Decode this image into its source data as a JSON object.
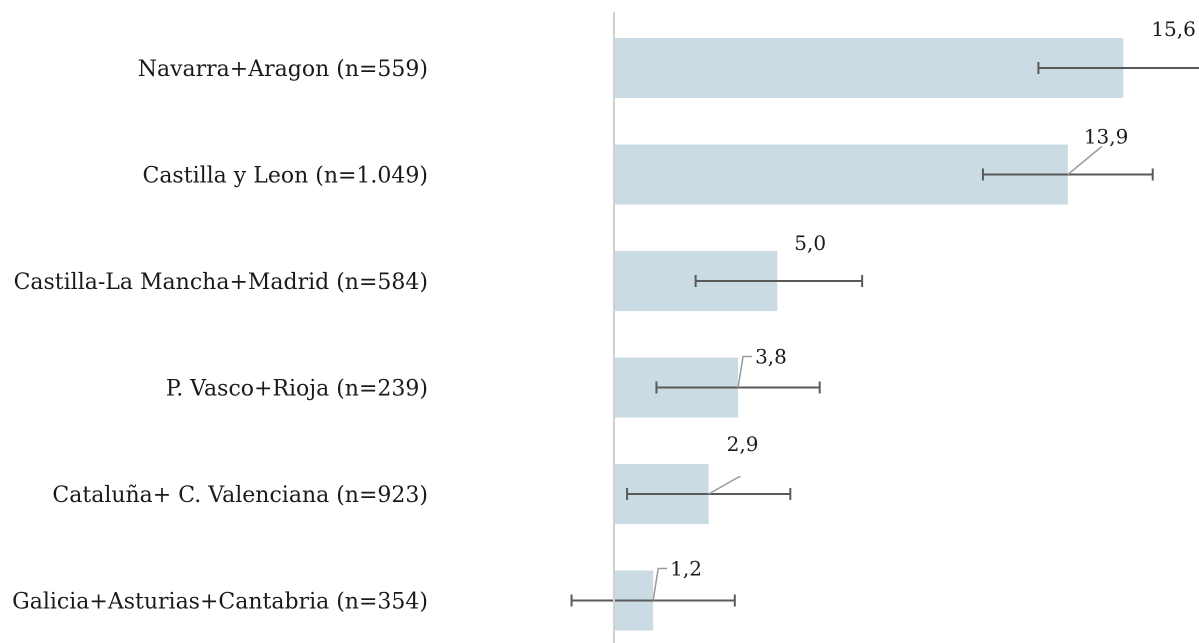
{
  "chart_data": {
    "type": "bar",
    "orientation": "horizontal",
    "categories": [
      "Navarra+Aragon (n=559)",
      "Castilla y Leon (n=1.049)",
      "Castilla-La Mancha+Madrid (n=584)",
      "P. Vasco+Rioja (n=239)",
      "Cataluña+ C. Valenciana (n=923)",
      "Galicia+Asturias+Cantabria (n=354)"
    ],
    "series": [
      {
        "values": [
          15.6,
          13.9,
          5.0,
          3.8,
          2.9,
          1.2
        ],
        "error_low": [
          13.0,
          11.3,
          2.5,
          1.3,
          0.4,
          -1.3
        ],
        "error_high": [
          18.3,
          16.5,
          7.6,
          6.3,
          5.4,
          3.7
        ]
      }
    ],
    "value_labels": [
      "15,6",
      "13,9",
      "5,0",
      "3,8",
      "2,9",
      "1,2"
    ],
    "xlim": [
      -1.5,
      18.3
    ],
    "grid": false,
    "bar_color": "#cbdbe3",
    "error_bar_color": "#5a5a5a",
    "axis_color": "#d0d0d0",
    "leader_line_color": "#9a9a9a"
  }
}
